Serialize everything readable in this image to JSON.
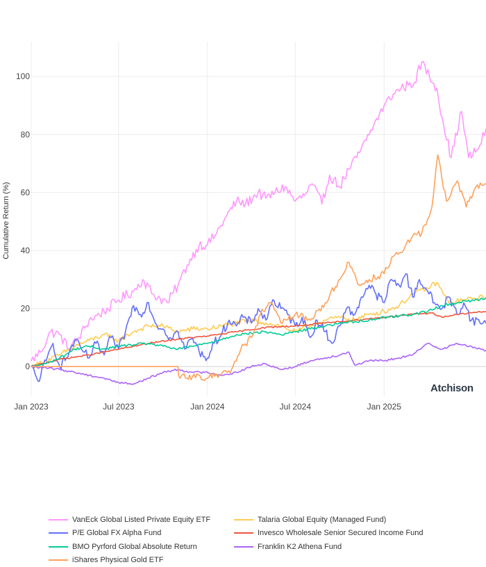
{
  "chart_data": {
    "type": "line",
    "ylabel": "Cumulative Return (%)",
    "xlabel": "",
    "xlim": [
      "2023-01-01",
      "2025-07-31"
    ],
    "ylim": [
      -10,
      112
    ],
    "yticks": [
      0,
      20,
      40,
      60,
      80,
      100
    ],
    "ytick_labels": [
      "0",
      "20",
      "40",
      "60",
      "80",
      "100"
    ],
    "xticks": [
      "2023-01-01",
      "2023-07-01",
      "2024-01-01",
      "2024-07-01",
      "2025-01-01"
    ],
    "xtick_labels": [
      "Jan 2023",
      "Jul 2023",
      "Jan 2024",
      "Jul 2024",
      "Jan 2025"
    ],
    "grid": true,
    "legend_position": "bottom",
    "watermark": "Atchison",
    "series": [
      {
        "name": "VanEck Global Listed Private Equity ETF",
        "color": "#ff97ff",
        "x": [
          "2023-01-01",
          "2023-01-20",
          "2023-02-10",
          "2023-03-01",
          "2023-03-20",
          "2023-04-10",
          "2023-05-01",
          "2023-06-01",
          "2023-07-01",
          "2023-08-01",
          "2023-08-20",
          "2023-09-10",
          "2023-10-10",
          "2023-11-01",
          "2023-11-20",
          "2023-12-15",
          "2024-01-01",
          "2024-01-20",
          "2024-02-10",
          "2024-03-01",
          "2024-03-20",
          "2024-04-15",
          "2024-05-01",
          "2024-05-20",
          "2024-06-10",
          "2024-07-01",
          "2024-07-20",
          "2024-08-05",
          "2024-08-25",
          "2024-09-10",
          "2024-10-01",
          "2024-10-20",
          "2024-11-05",
          "2024-11-25",
          "2024-12-10",
          "2025-01-01",
          "2025-01-20",
          "2025-02-05",
          "2025-02-20",
          "2025-03-05",
          "2025-03-20",
          "2025-04-05",
          "2025-04-20",
          "2025-05-01",
          "2025-05-20",
          "2025-06-10",
          "2025-06-25",
          "2025-07-15",
          "2025-07-31"
        ],
        "y": [
          2,
          5,
          12,
          11,
          6,
          10,
          16,
          19,
          23,
          26,
          30,
          25,
          22,
          28,
          35,
          42,
          42,
          46,
          52,
          57,
          56,
          60,
          58,
          60,
          62,
          57,
          59,
          63,
          56,
          66,
          62,
          68,
          72,
          78,
          83,
          90,
          94,
          96,
          97,
          98,
          105,
          100,
          96,
          86,
          72,
          88,
          72,
          75,
          82
        ]
      },
      {
        "name": "Talaria Global Equity (Managed Fund)",
        "color": "#fecb52",
        "x": [
          "2023-01-01",
          "2023-02-01",
          "2023-03-01",
          "2023-04-01",
          "2023-05-01",
          "2023-06-01",
          "2023-07-01",
          "2023-08-01",
          "2023-09-01",
          "2023-10-01",
          "2023-11-01",
          "2023-12-01",
          "2024-01-01",
          "2024-02-01",
          "2024-03-01",
          "2024-04-01",
          "2024-05-01",
          "2024-06-01",
          "2024-07-01",
          "2024-08-01",
          "2024-09-01",
          "2024-10-01",
          "2024-11-01",
          "2024-12-01",
          "2025-01-01",
          "2025-02-01",
          "2025-03-01",
          "2025-04-01",
          "2025-04-20",
          "2025-05-15",
          "2025-06-15",
          "2025-07-31"
        ],
        "y": [
          0,
          2,
          4,
          7,
          9,
          11,
          9,
          12,
          14,
          14,
          12,
          13,
          13,
          14,
          15,
          16,
          15,
          14,
          12,
          14,
          16,
          17,
          16,
          18,
          19,
          21,
          25,
          27,
          29,
          22,
          23,
          24
        ]
      },
      {
        "name": "P/E Global FX Alpha Fund",
        "color": "#636efa",
        "x": [
          "2023-01-01",
          "2023-01-15",
          "2023-02-01",
          "2023-02-15",
          "2023-03-01",
          "2023-03-15",
          "2023-04-01",
          "2023-04-15",
          "2023-05-01",
          "2023-05-15",
          "2023-06-01",
          "2023-06-15",
          "2023-07-01",
          "2023-07-15",
          "2023-08-01",
          "2023-08-15",
          "2023-09-01",
          "2023-09-15",
          "2023-10-01",
          "2023-10-15",
          "2023-11-01",
          "2023-11-15",
          "2023-12-01",
          "2023-12-15",
          "2024-01-01",
          "2024-01-15",
          "2024-02-01",
          "2024-02-15",
          "2024-03-01",
          "2024-03-15",
          "2024-04-01",
          "2024-04-15",
          "2024-05-01",
          "2024-05-15",
          "2024-06-01",
          "2024-06-15",
          "2024-07-01",
          "2024-07-15",
          "2024-08-01",
          "2024-08-15",
          "2024-09-01",
          "2024-09-15",
          "2024-10-01",
          "2024-10-15",
          "2024-11-01",
          "2024-11-15",
          "2024-12-01",
          "2024-12-15",
          "2025-01-01",
          "2025-01-15",
          "2025-02-01",
          "2025-02-15",
          "2025-03-01",
          "2025-03-15",
          "2025-04-01",
          "2025-04-15",
          "2025-05-01",
          "2025-05-15",
          "2025-06-01",
          "2025-06-15",
          "2025-07-01",
          "2025-07-31"
        ],
        "y": [
          0,
          -5,
          2,
          8,
          0,
          3,
          9,
          6,
          3,
          8,
          4,
          10,
          6,
          12,
          21,
          18,
          22,
          15,
          13,
          10,
          12,
          6,
          10,
          5,
          3,
          8,
          12,
          16,
          14,
          17,
          15,
          20,
          16,
          23,
          20,
          18,
          14,
          17,
          10,
          16,
          12,
          8,
          14,
          20,
          18,
          24,
          28,
          25,
          22,
          30,
          28,
          32,
          24,
          30,
          26,
          22,
          20,
          24,
          18,
          22,
          16,
          15
        ]
      },
      {
        "name": "Invesco Wholesale Senior Secured Income Fund",
        "color": "#ef553b",
        "x": [
          "2023-01-01",
          "2023-03-01",
          "2023-05-01",
          "2023-07-01",
          "2023-09-01",
          "2023-11-01",
          "2024-01-01",
          "2024-03-01",
          "2024-05-01",
          "2024-07-01",
          "2024-09-01",
          "2024-11-01",
          "2025-01-01",
          "2025-03-01",
          "2025-04-10",
          "2025-05-01",
          "2025-06-01",
          "2025-07-31"
        ],
        "y": [
          0,
          2.5,
          4,
          6,
          8,
          9.5,
          10.5,
          12,
          13.5,
          14,
          15,
          16,
          17,
          18,
          18.5,
          17,
          18,
          19
        ]
      },
      {
        "name": "BMO Pyrford Global Absolute Return",
        "color": "#00cc96",
        "x": [
          "2023-01-01",
          "2023-02-01",
          "2023-03-01",
          "2023-04-01",
          "2023-05-01",
          "2023-06-01",
          "2023-07-01",
          "2023-08-01",
          "2023-09-01",
          "2023-10-01",
          "2023-11-01",
          "2023-12-01",
          "2024-01-01",
          "2024-02-01",
          "2024-03-01",
          "2024-04-01",
          "2024-05-01",
          "2024-06-01",
          "2024-07-01",
          "2024-08-01",
          "2024-09-01",
          "2024-10-01",
          "2024-11-01",
          "2024-12-01",
          "2025-01-01",
          "2025-02-01",
          "2025-03-01",
          "2025-04-01",
          "2025-05-01",
          "2025-06-01",
          "2025-07-31"
        ],
        "y": [
          0,
          1,
          3,
          6,
          7,
          6,
          7,
          7.5,
          8,
          7,
          6,
          7,
          8,
          9.5,
          11,
          11.5,
          12,
          11,
          12,
          13,
          14,
          15,
          15.5,
          16,
          17,
          17.5,
          18,
          19,
          21,
          22,
          23.5
        ]
      },
      {
        "name": "Franklin K2 Athena Fund",
        "color": "#ab63fa",
        "x": [
          "2023-01-01",
          "2023-02-01",
          "2023-03-01",
          "2023-04-01",
          "2023-05-01",
          "2023-06-01",
          "2023-07-01",
          "2023-08-01",
          "2023-09-01",
          "2023-10-01",
          "2023-11-01",
          "2023-12-01",
          "2024-01-01",
          "2024-02-01",
          "2024-03-01",
          "2024-04-01",
          "2024-05-01",
          "2024-06-01",
          "2024-07-01",
          "2024-08-01",
          "2024-09-01",
          "2024-10-01",
          "2024-10-20",
          "2024-11-01",
          "2024-12-01",
          "2025-01-01",
          "2025-02-01",
          "2025-03-01",
          "2025-04-01",
          "2025-05-01",
          "2025-06-01",
          "2025-07-31"
        ],
        "y": [
          0,
          -0.5,
          -1,
          -2,
          -3,
          -4,
          -5.5,
          -6,
          -4,
          -2,
          -1,
          -2,
          -2,
          -3,
          -2,
          0,
          1,
          -1,
          0,
          2,
          3,
          4,
          5,
          0.5,
          2,
          2,
          3,
          4,
          8,
          6,
          8,
          5.5
        ]
      },
      {
        "name": "iShares Physical Gold ETF",
        "color": "#ffa15a",
        "x": [
          "2023-01-01",
          "2023-11-01",
          "2023-11-02",
          "2023-12-01",
          "2024-01-01",
          "2024-02-01",
          "2024-02-20",
          "2024-03-10",
          "2024-04-01",
          "2024-04-20",
          "2024-05-10",
          "2024-06-01",
          "2024-07-01",
          "2024-08-01",
          "2024-09-01",
          "2024-10-01",
          "2024-10-20",
          "2024-11-10",
          "2024-12-01",
          "2025-01-01",
          "2025-01-20",
          "2025-02-10",
          "2025-03-01",
          "2025-03-20",
          "2025-04-10",
          "2025-04-22",
          "2025-05-10",
          "2025-06-01",
          "2025-06-20",
          "2025-07-10",
          "2025-07-31"
        ],
        "y": [
          0,
          0,
          -3,
          -3.5,
          -4,
          -2,
          -1,
          6,
          10,
          18,
          22,
          15,
          18,
          16,
          22,
          30,
          36,
          28,
          30,
          32,
          38,
          40,
          45,
          46,
          55,
          73,
          57,
          64,
          55,
          62,
          63
        ]
      }
    ]
  }
}
